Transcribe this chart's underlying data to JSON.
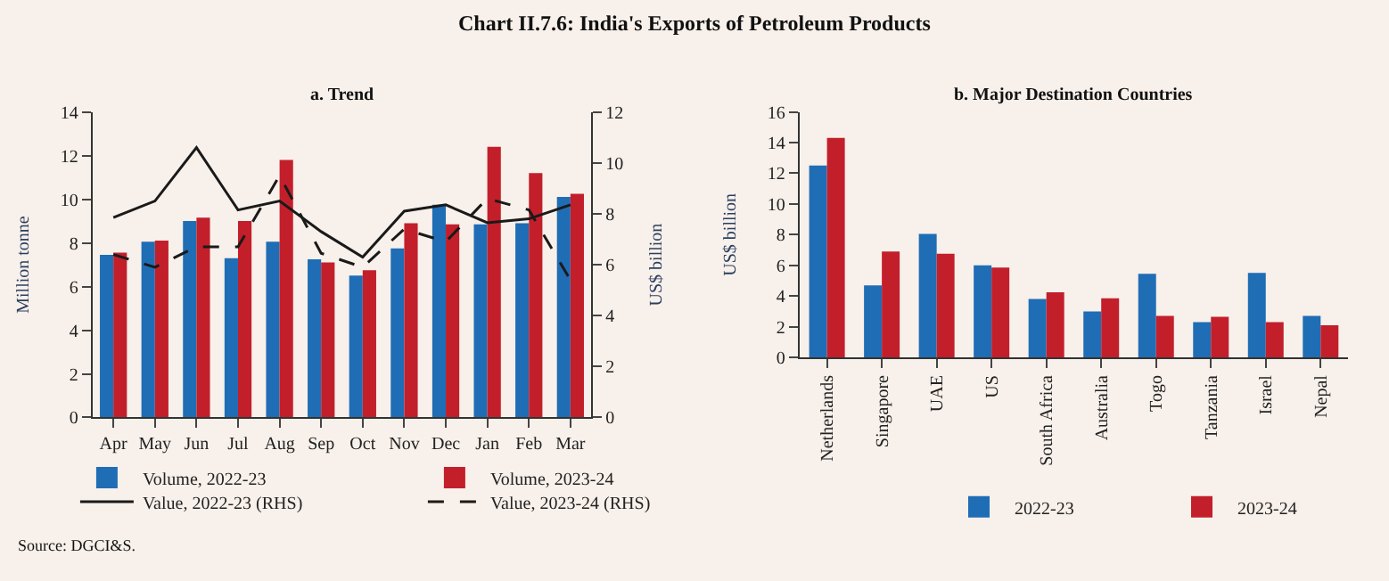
{
  "chart_data": [
    {
      "type": "bar",
      "title": "Chart II.7.6: India's Exports of Petroleum Products",
      "subtitle": "a. Trend",
      "ylabel": "Million tonne",
      "y2label": "US$ billion",
      "categories": [
        "Apr",
        "May",
        "Jun",
        "Jul",
        "Aug",
        "Sep",
        "Oct",
        "Nov",
        "Dec",
        "Jan",
        "Feb",
        "Mar"
      ],
      "series": [
        {
          "name": "Volume, 2022-23",
          "color": "#1f6db5",
          "values": [
            7.45,
            8.05,
            9.0,
            7.3,
            8.05,
            7.25,
            6.5,
            7.75,
            9.75,
            8.85,
            8.9,
            10.1
          ]
        },
        {
          "name": "Volume, 2023-24",
          "color": "#c21f2b",
          "values": [
            7.55,
            8.1,
            9.15,
            9.0,
            11.8,
            7.1,
            6.75,
            8.9,
            8.85,
            12.4,
            11.2,
            10.25
          ]
        },
        {
          "name": "Value, 2022-23 (RHS)",
          "type": "line",
          "axis": "y2",
          "line_style": "solid",
          "color": "#1a1a1a",
          "values": [
            7.85,
            8.5,
            10.6,
            8.15,
            8.5,
            7.3,
            6.3,
            8.1,
            8.35,
            7.65,
            7.8,
            8.35
          ]
        },
        {
          "name": "Value, 2023-24 (RHS)",
          "type": "line",
          "axis": "y2",
          "line_style": "dashed",
          "color": "#1a1a1a",
          "values": [
            6.4,
            5.9,
            6.7,
            6.7,
            9.5,
            6.45,
            5.9,
            7.4,
            6.9,
            8.6,
            8.15,
            5.4
          ]
        }
      ],
      "ylim": [
        0,
        14
      ],
      "yticks": [
        0,
        2,
        4,
        6,
        8,
        10,
        12,
        14
      ],
      "y2lim": [
        0,
        12
      ],
      "y2ticks": [
        0,
        2,
        4,
        6,
        8,
        10,
        12
      ],
      "grid": false,
      "legend": "bottom",
      "marker": "none",
      "annotations": [
        "Source: DGCI&S."
      ]
    },
    {
      "type": "bar",
      "subtitle": "b. Major Destination Countries",
      "ylabel": "US$ billion",
      "categories": [
        "Netherlands",
        "Singapore",
        "UAE",
        "US",
        "South Africa",
        "Australia",
        "Togo",
        "Tanzania",
        "Israel",
        "Nepal"
      ],
      "series": [
        {
          "name": "2022-23",
          "color": "#1f6db5",
          "values": [
            12.5,
            4.7,
            8.05,
            6.0,
            3.8,
            3.0,
            5.45,
            2.3,
            5.5,
            2.7
          ]
        },
        {
          "name": "2023-24",
          "color": "#c21f2b",
          "values": [
            14.3,
            6.9,
            6.75,
            5.85,
            4.25,
            3.85,
            2.7,
            2.65,
            2.3,
            2.1
          ]
        }
      ],
      "ylim": [
        0,
        16
      ],
      "yticks": [
        0,
        2,
        4,
        6,
        8,
        10,
        12,
        14,
        16
      ],
      "grid": false,
      "legend": "bottom"
    }
  ]
}
